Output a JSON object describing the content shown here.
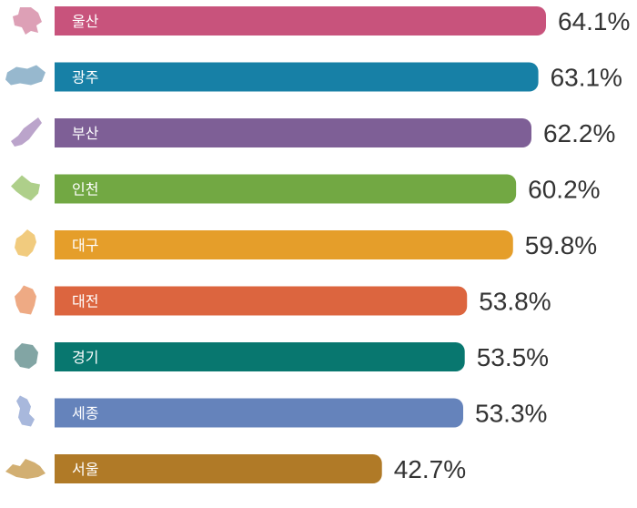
{
  "chart_data": {
    "type": "bar",
    "orientation": "horizontal",
    "title": "",
    "xlabel": "",
    "ylabel": "",
    "grid": false,
    "legend": "none",
    "xlim": [
      0,
      64.1
    ],
    "unit": "%",
    "categories": [
      "울산",
      "광주",
      "부산",
      "인천",
      "대구",
      "대전",
      "경기",
      "세종",
      "서울"
    ],
    "values": [
      64.1,
      63.1,
      62.2,
      60.2,
      59.8,
      53.8,
      53.5,
      53.3,
      42.7
    ],
    "value_labels": [
      "64.1%",
      "63.1%",
      "62.2%",
      "60.2%",
      "59.8%",
      "53.8%",
      "53.5%",
      "53.3%",
      "42.7%"
    ],
    "colors": [
      "#c8537c",
      "#1780a6",
      "#7e5f96",
      "#72a843",
      "#e59e2a",
      "#dc653f",
      "#08776f",
      "#6583bb",
      "#b07a27"
    ],
    "icon_colors": [
      "#dda0b6",
      "#97b8ce",
      "#bba4cb",
      "#aecf8a",
      "#f1cb7e",
      "#eeaa84",
      "#82a5a4",
      "#a8b8dc",
      "#d2af72"
    ],
    "icons": [
      "ulsan-map-icon",
      "gwangju-map-icon",
      "busan-map-icon",
      "incheon-map-icon",
      "daegu-map-icon",
      "daejeon-map-icon",
      "gyeonggi-map-icon",
      "sejong-map-icon",
      "seoul-map-icon"
    ]
  }
}
